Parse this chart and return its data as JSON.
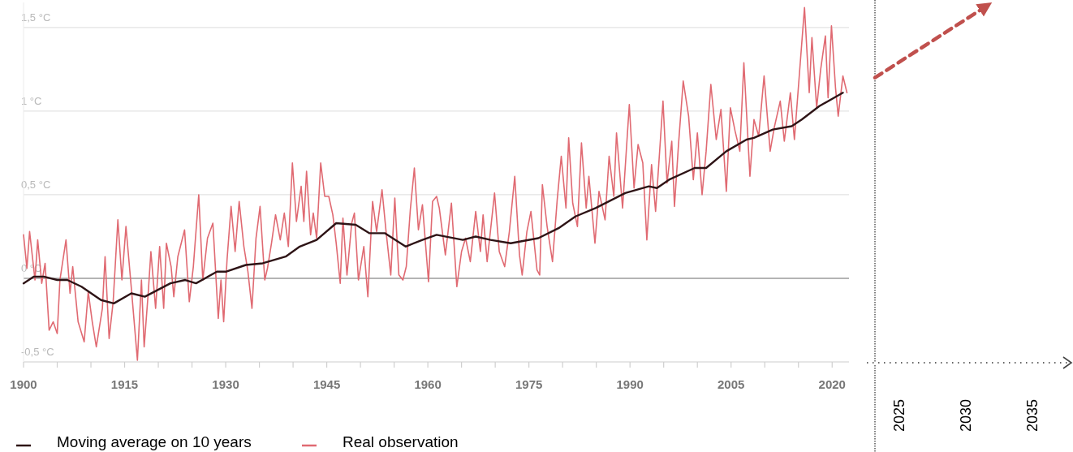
{
  "chart_data": [
    {
      "type": "line",
      "xlim": [
        1900,
        2022.5
      ],
      "ylim": [
        -0.5,
        1.65
      ],
      "xticks": [
        1900,
        {
          "value": 1905,
          "label": null
        },
        {
          "value": 1910,
          "label": null
        },
        1915,
        {
          "value": 1920,
          "label": null
        },
        {
          "value": 1925,
          "label": null
        },
        1930,
        {
          "value": 1935,
          "label": null
        },
        {
          "value": 1940,
          "label": null
        },
        1945,
        {
          "value": 1950,
          "label": null
        },
        {
          "value": 1955,
          "label": null
        },
        1960,
        {
          "value": 1965,
          "label": null
        },
        {
          "value": 1970,
          "label": null
        },
        1975,
        {
          "value": 1980,
          "label": null
        },
        {
          "value": 1985,
          "label": null
        },
        1990,
        {
          "value": 1995,
          "label": null
        },
        {
          "value": 2000,
          "label": null
        },
        2005,
        {
          "value": 2010,
          "label": null
        },
        {
          "value": 2015,
          "label": null
        },
        2020
      ],
      "yticks": [
        {
          "value": -0.5,
          "label": "-0,5 °C"
        },
        {
          "value": 0,
          "label": "0 °C"
        },
        {
          "value": 0.5,
          "label": "0,5 °C"
        },
        {
          "value": 1,
          "label": "1 °C"
        },
        {
          "value": 1.5,
          "label": "1,5 °C"
        }
      ],
      "grid": "y",
      "legend": "bottom",
      "marker": "none",
      "ref_lines": [
        {
          "axis": "y",
          "value": 0,
          "color": "#b4b4b4"
        }
      ],
      "series": [
        {
          "name": "Moving average on 10 years",
          "color": "#2e1416",
          "x": [
            1900,
            1901.5,
            1903,
            1905,
            1906.5,
            1908.6,
            1911.5,
            1913.4,
            1916,
            1918,
            1921.8,
            1924,
            1925.6,
            1928.7,
            1930.1,
            1933,
            1935.5,
            1938.9,
            1941,
            1943.5,
            1946.4,
            1949.3,
            1951.3,
            1953.6,
            1956.7,
            1959.2,
            1961.3,
            1965.2,
            1967.1,
            1969.3,
            1972.3,
            1976.4,
            1979.4,
            1981.9,
            1984.9,
            1989.3,
            1992.8,
            1994,
            1995.8,
            1999.6,
            2001.3,
            2004.3,
            2007.3,
            2008.4,
            2011.2,
            2014,
            2015.5,
            2018.1,
            2021.6
          ],
          "values": [
            -0.03,
            0.01,
            0.01,
            -0.01,
            -0.01,
            -0.05,
            -0.13,
            -0.15,
            -0.09,
            -0.11,
            -0.03,
            -0.01,
            -0.03,
            0.04,
            0.04,
            0.08,
            0.09,
            0.13,
            0.19,
            0.23,
            0.33,
            0.32,
            0.27,
            0.27,
            0.19,
            0.23,
            0.26,
            0.23,
            0.25,
            0.23,
            0.21,
            0.24,
            0.3,
            0.37,
            0.42,
            0.51,
            0.55,
            0.54,
            0.59,
            0.66,
            0.66,
            0.76,
            0.83,
            0.84,
            0.89,
            0.91,
            0.95,
            1.03,
            1.11
          ]
        },
        {
          "name": "Real observation",
          "color": "#e06a72",
          "x": [
            1900,
            1900.5,
            1900.9,
            1901.7,
            1902.1,
            1902.7,
            1903.2,
            1903.8,
            1904.4,
            1905,
            1905.4,
            1906.3,
            1906.9,
            1907.3,
            1908.1,
            1909,
            1909.6,
            1910.2,
            1910.8,
            1911.7,
            1912.1,
            1912.7,
            1913.3,
            1914,
            1914.6,
            1915.2,
            1916,
            1916.9,
            1917.5,
            1917.9,
            1918.5,
            1918.9,
            1919.6,
            1920.2,
            1920.8,
            1921.2,
            1921.9,
            1922.3,
            1922.9,
            1923.9,
            1924.6,
            1925.2,
            1926,
            1926.6,
            1927.3,
            1928.1,
            1928.9,
            1929.3,
            1929.7,
            1930.2,
            1930.8,
            1931.4,
            1932,
            1932.7,
            1933.3,
            1933.9,
            1934.5,
            1935.1,
            1935.8,
            1936.2,
            1936.8,
            1937.4,
            1938.1,
            1938.7,
            1939.3,
            1939.9,
            1940.5,
            1941.2,
            1941.6,
            1942,
            1942.6,
            1943,
            1943.5,
            1944.1,
            1944.7,
            1945.3,
            1945.9,
            1946.4,
            1947,
            1947.4,
            1948,
            1948.7,
            1949.1,
            1949.7,
            1950.5,
            1951.1,
            1951.8,
            1952.4,
            1953.2,
            1953.8,
            1954.5,
            1955.1,
            1955.7,
            1956.3,
            1956.8,
            1957.4,
            1958,
            1958.6,
            1959.2,
            1960.1,
            1960.7,
            1961.3,
            1961.7,
            1962.6,
            1963.5,
            1964.3,
            1965,
            1965.6,
            1966.3,
            1967.1,
            1967.8,
            1968.2,
            1968.8,
            1969.9,
            1970.6,
            1971.4,
            1972.1,
            1972.9,
            1973.6,
            1974,
            1974.7,
            1975.3,
            1976.2,
            1976.6,
            1977,
            1977.7,
            1978.5,
            1979.2,
            1979.8,
            1980.5,
            1980.9,
            1981.5,
            1982.2,
            1982.8,
            1983.5,
            1983.9,
            1984.8,
            1985.4,
            1986.3,
            1986.9,
            1987.6,
            1988,
            1988.9,
            1989.9,
            1990.6,
            1991.2,
            1991.9,
            1992.5,
            1993.2,
            1993.8,
            1994.9,
            1995.5,
            1996.2,
            1996.6,
            1997.2,
            1997.9,
            1998.7,
            1999.4,
            2000,
            2000.7,
            2001.3,
            2002,
            2002.8,
            2003.5,
            2004.3,
            2004.9,
            2005.6,
            2006.3,
            2006.9,
            2007.8,
            2008.4,
            2009.1,
            2009.9,
            2010.8,
            2011.4,
            2012.3,
            2012.9,
            2013.8,
            2014.4,
            2015.1,
            2015.9,
            2016.6,
            2017,
            2017.7,
            2018.3,
            2019,
            2019.4,
            2019.9,
            2020.5,
            2020.9,
            2021.6,
            2022.2
          ],
          "values": [
            0.26,
            0.06,
            0.28,
            -0.01,
            0.23,
            -0.03,
            0.09,
            -0.31,
            -0.26,
            -0.33,
            -0.01,
            0.23,
            -0.09,
            0.07,
            -0.26,
            -0.38,
            -0.08,
            -0.26,
            -0.41,
            -0.18,
            0.13,
            -0.36,
            -0.14,
            0.35,
            -0.01,
            0.31,
            -0.06,
            -0.49,
            -0.01,
            -0.41,
            -0.09,
            0.16,
            -0.18,
            0.19,
            -0.18,
            0.21,
            0.07,
            -0.11,
            0.13,
            0.29,
            -0.14,
            0.07,
            0.5,
            -0.01,
            0.24,
            0.33,
            -0.24,
            -0.01,
            -0.26,
            0.11,
            0.43,
            0.16,
            0.46,
            0.19,
            0.04,
            -0.18,
            0.24,
            0.43,
            -0.01,
            0.06,
            0.21,
            0.38,
            0.23,
            0.39,
            0.19,
            0.69,
            0.34,
            0.55,
            0.34,
            0.64,
            0.26,
            0.39,
            0.24,
            0.69,
            0.49,
            0.49,
            0.38,
            0.21,
            -0.03,
            0.36,
            0.02,
            0.33,
            0.39,
            -0.01,
            0.19,
            -0.11,
            0.46,
            0.28,
            0.53,
            0.28,
            0.02,
            0.48,
            0.02,
            -0.01,
            0.07,
            0.41,
            0.66,
            0.29,
            0.44,
            -0.02,
            0.46,
            0.49,
            0.42,
            0.14,
            0.45,
            -0.05,
            0.16,
            0.24,
            0.1,
            0.4,
            0.16,
            0.38,
            0.1,
            0.51,
            0.16,
            0.07,
            0.28,
            0.61,
            0.14,
            0.02,
            0.28,
            0.4,
            0.05,
            0.02,
            0.56,
            0.31,
            0.1,
            0.47,
            0.73,
            0.42,
            0.84,
            0.45,
            0.31,
            0.81,
            0.42,
            0.61,
            0.21,
            0.52,
            0.35,
            0.73,
            0.49,
            0.87,
            0.42,
            1.04,
            0.54,
            0.8,
            0.69,
            0.23,
            0.68,
            0.4,
            1.06,
            0.57,
            0.82,
            0.43,
            0.8,
            1.18,
            0.97,
            0.59,
            0.87,
            0.5,
            0.76,
            1.16,
            0.83,
            1.01,
            0.52,
            1.02,
            0.88,
            0.76,
            1.29,
            0.61,
            0.95,
            0.85,
            1.21,
            0.76,
            0.9,
            1.06,
            0.82,
            1.11,
            0.83,
            1.2,
            1.62,
            1.11,
            1.44,
            1.02,
            1.25,
            1.45,
            1.08,
            1.51,
            1.14,
            0.97,
            1.21,
            1.11
          ]
        }
      ]
    },
    {
      "type": "line",
      "xlim": [
        2023.2,
        2038
      ],
      "ylim": [
        -0.5,
        1.65
      ],
      "xticks": [
        2025,
        2030,
        2035
      ],
      "tick_labels": "x",
      "marker": "none",
      "series": [
        {
          "color": "#c0504d",
          "line_style": "dashed",
          "x": [
            2023.2,
            2031.8
          ],
          "values": [
            1.2,
            1.64
          ]
        }
      ]
    }
  ]
}
